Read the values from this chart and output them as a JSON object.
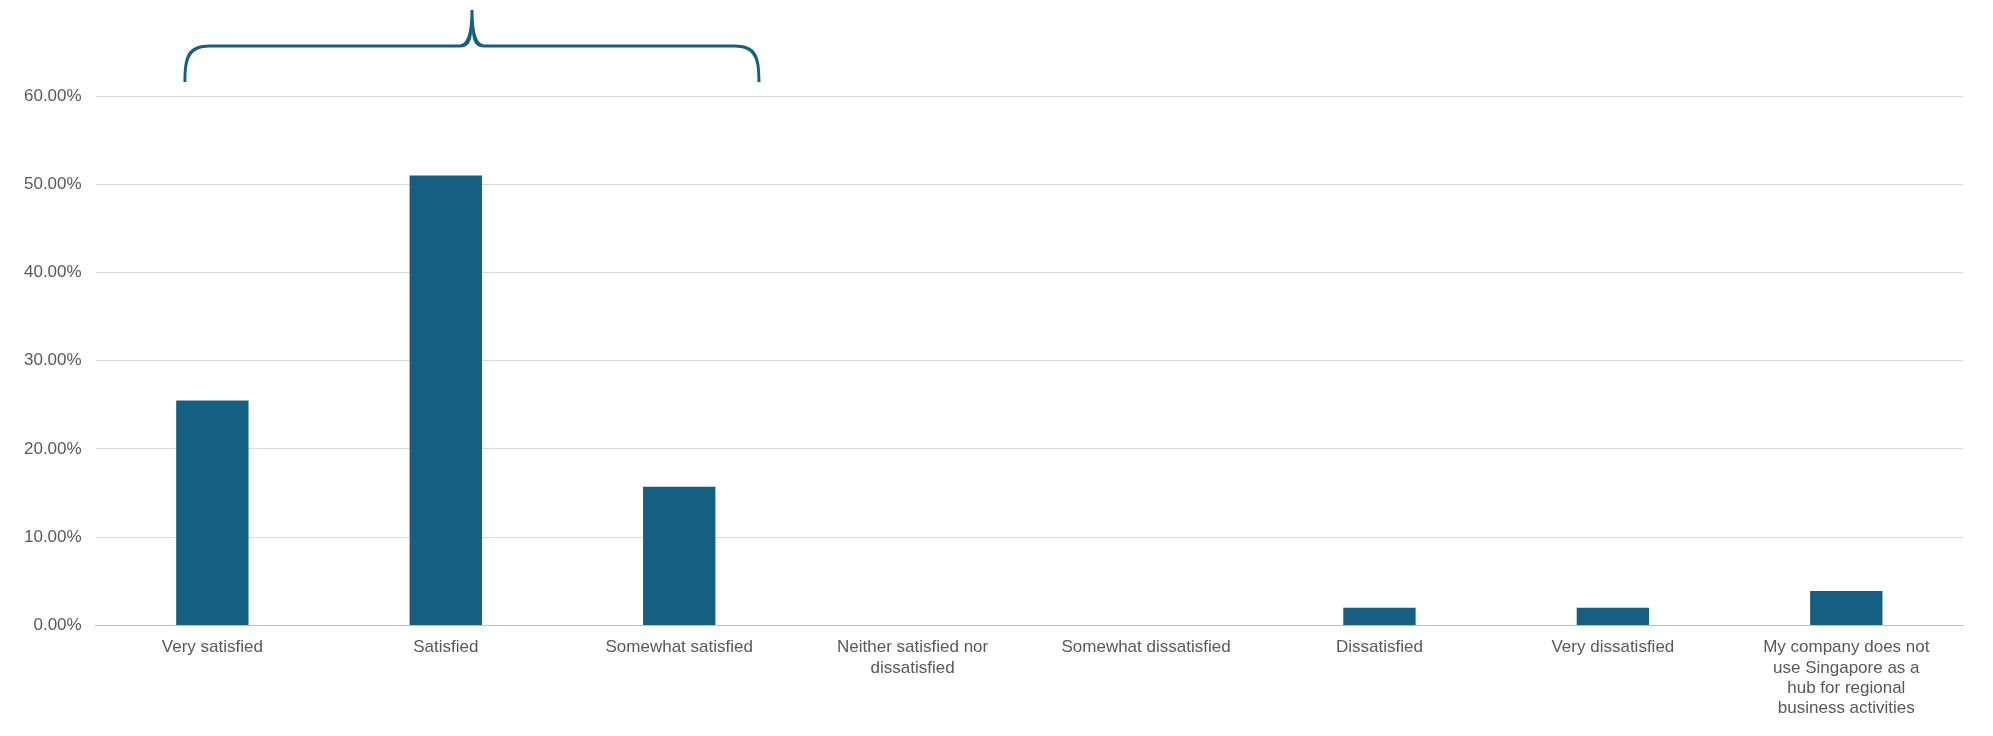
{
  "chart_data": {
    "type": "bar",
    "categories": [
      "Very satisfied",
      "Satisfied",
      "Somewhat satisfied",
      "Neither satisfied nor dissatisfied",
      "Somewhat dissatisfied",
      "Dissatisfied",
      "Very dissatisfied",
      "My company does not use Singapore as a hub for regional business activities"
    ],
    "values": [
      25.5,
      51.0,
      15.7,
      0,
      0,
      2.0,
      2.0,
      3.9
    ],
    "color": "#156082",
    "ylim": [
      0,
      60
    ],
    "yticks": [
      {
        "value": 0,
        "label": "0.00%"
      },
      {
        "value": 10,
        "label": "10.00%"
      },
      {
        "value": 20,
        "label": "20.00%"
      },
      {
        "value": 30,
        "label": "30.00%"
      },
      {
        "value": 40,
        "label": "40.00%"
      },
      {
        "value": 50,
        "label": "50.00%"
      },
      {
        "value": 60,
        "label": "60.00%"
      }
    ],
    "grid": "y"
  }
}
